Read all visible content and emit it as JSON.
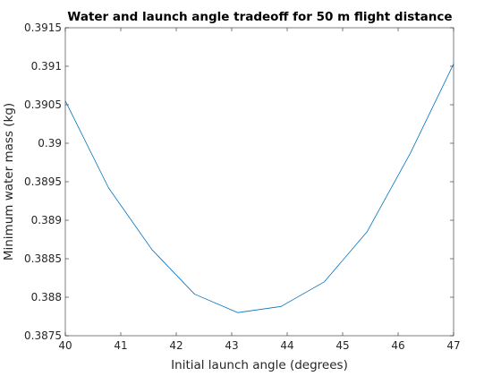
{
  "chart_data": {
    "type": "line",
    "title": "Water and launch angle tradeoff for 50 m flight distance",
    "xlabel": "Initial launch angle (degrees)",
    "ylabel": "Minimum water mass (kg)",
    "xlim": [
      40,
      47
    ],
    "ylim": [
      0.3875,
      0.3915
    ],
    "xticks": [
      "40",
      "41",
      "42",
      "43",
      "44",
      "45",
      "46",
      "47"
    ],
    "yticks": [
      "0.3875",
      "0.388",
      "0.3885",
      "0.389",
      "0.3895",
      "0.39",
      "0.3905",
      "0.391",
      "0.3915"
    ],
    "grid": false,
    "line_color": "#0072BD",
    "series": [
      {
        "x": [
          40,
          40.78,
          41.56,
          42.33,
          43.11,
          43.89,
          44.67,
          45.44,
          46.22,
          47
        ],
        "y": [
          0.39055,
          0.38942,
          0.38862,
          0.38804,
          0.3878,
          0.38788,
          0.3882,
          0.38885,
          0.38987,
          0.39103
        ]
      }
    ]
  }
}
